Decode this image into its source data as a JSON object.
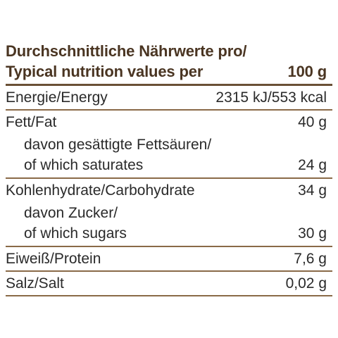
{
  "header": {
    "line1": "Durchschnittliche Nährwerte pro/",
    "line2": "Typical nutrition values per",
    "per_amount": "100 g"
  },
  "rows": [
    {
      "label": "Energie/Energy",
      "value": "2315 kJ/553 kcal"
    },
    {
      "label": "Fett/Fat",
      "value": "40 g"
    },
    {
      "label_line1": "davon gesättigte Fettsäuren/",
      "label_line2": "of which saturates",
      "value": "24 g"
    },
    {
      "label": "Kohlenhydrate/Carbohydrate",
      "value": "34 g"
    },
    {
      "label_line1": "davon Zucker/",
      "label_line2": "of which sugars",
      "value": "30 g"
    },
    {
      "label": "Eiweiß/Protein",
      "value": "7,6 g"
    },
    {
      "label": "Salz/Salt",
      "value": "0,02 g"
    }
  ]
}
